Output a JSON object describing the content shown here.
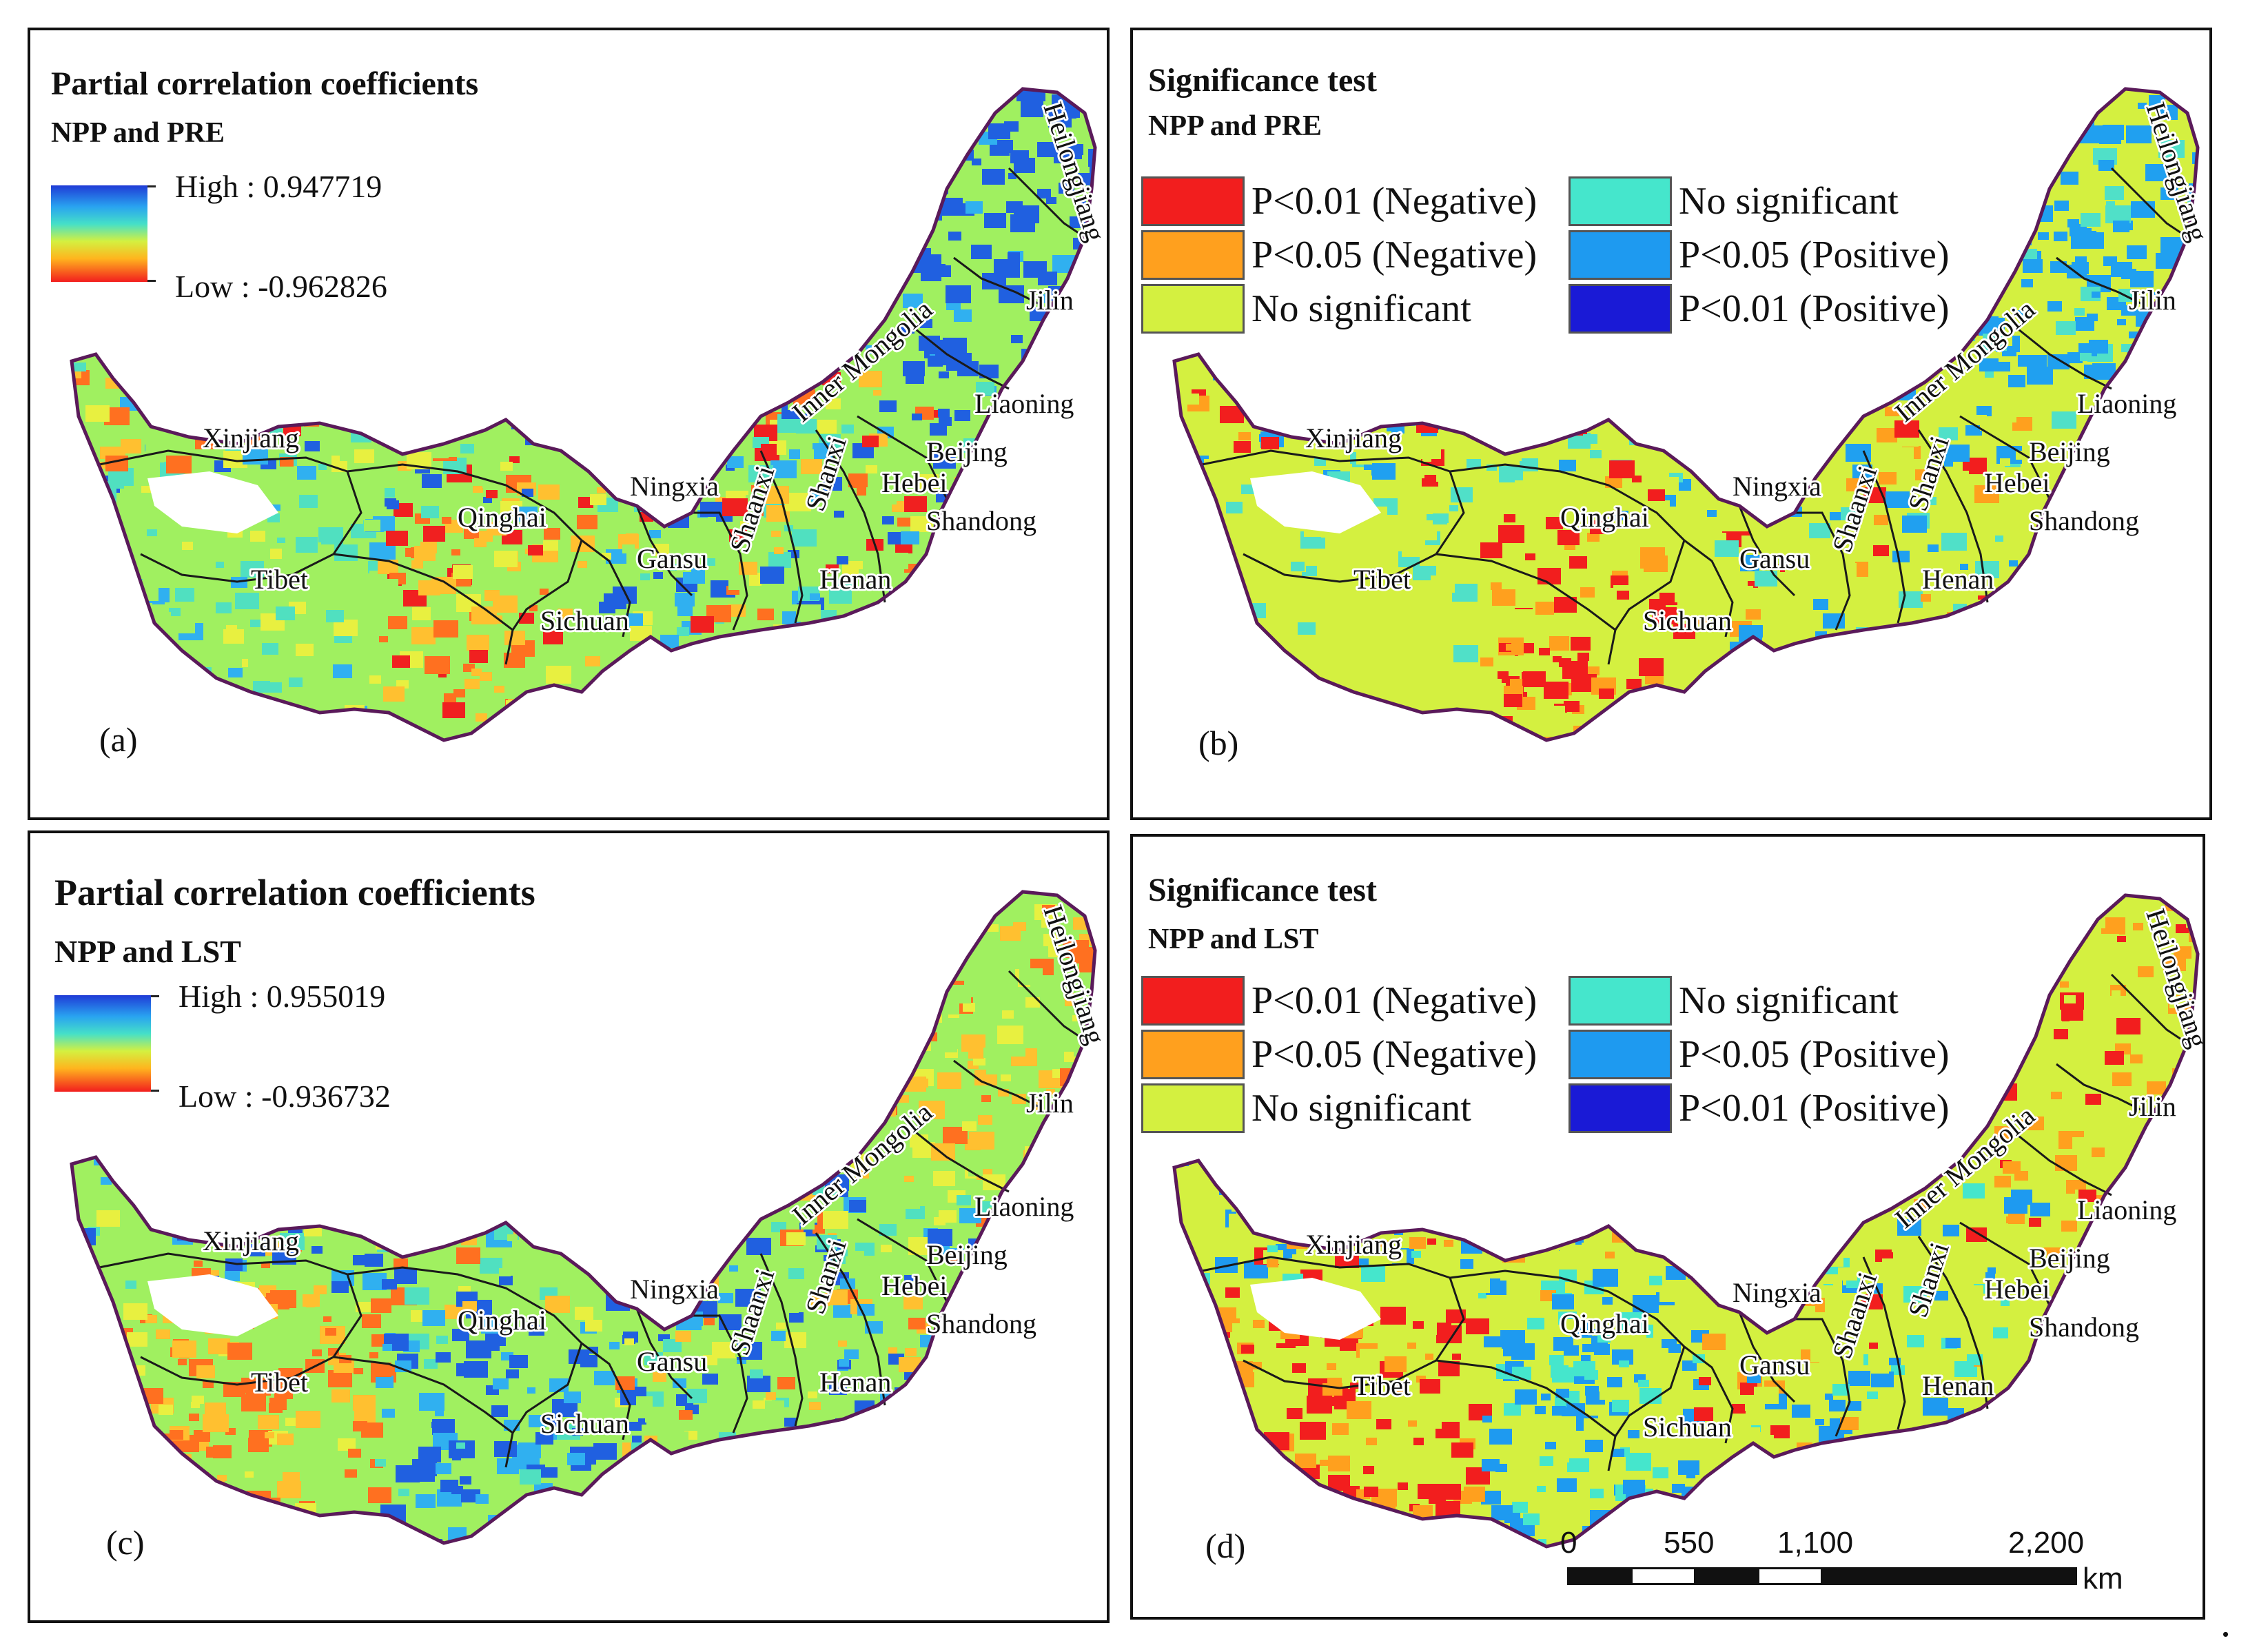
{
  "colors": {
    "ramp": [
      "#1f3bd6",
      "#29a3f0",
      "#45e0c8",
      "#d4f040",
      "#ffb41e",
      "#f21e1e"
    ],
    "boundary": "#1a1a1a",
    "outer_boundary": "#5a1a5a",
    "no_data": "#ffffff"
  },
  "provinces": [
    "Xinjiang",
    "Qinghai",
    "Tibet",
    "Sichuan",
    "Gansu",
    "Ningxia",
    "Shaanxi",
    "Shanxi",
    "Henan",
    "Hebei",
    "Beijing",
    "Shandong",
    "Liaoning",
    "Jilin",
    "Heilongjiang",
    "Inner Mongolia"
  ],
  "panels": [
    {
      "letter": "(a)",
      "title": "Partial correlation coefficients",
      "subtitle": "NPP and PRE",
      "legend": {
        "high": "High : 0.947719",
        "low": "Low : -0.962826"
      },
      "dominant_pattern": "positive correlation in northeast, negative in Qinghai-Tibet center"
    },
    {
      "letter": "(b)",
      "title": "Significance test",
      "subtitle": "NPP and PRE",
      "legend_items": [
        {
          "label": "P<0.01 (Negative)",
          "color": "#f21e1e"
        },
        {
          "label": "P<0.05 (Negative)",
          "color": "#ffa01e"
        },
        {
          "label": "No significant",
          "color": "#d4f040"
        },
        {
          "label": "No significant",
          "color": "#45e6cc"
        },
        {
          "label": "P<0.05 (Positive)",
          "color": "#1e9af0"
        },
        {
          "label": "P<0.01 (Positive)",
          "color": "#1a1ad6"
        }
      ]
    },
    {
      "letter": "(c)",
      "title": "Partial correlation coefficients",
      "subtitle": "NPP and LST",
      "legend": {
        "high": "High : 0.955019",
        "low": "Low : -0.936732"
      }
    },
    {
      "letter": "(d)",
      "title": "Significance test",
      "subtitle": "NPP and LST",
      "legend_items": [
        {
          "label": "P<0.01 (Negative)",
          "color": "#f21e1e"
        },
        {
          "label": "P<0.05 (Negative)",
          "color": "#ffa01e"
        },
        {
          "label": "No significant",
          "color": "#d4f040"
        },
        {
          "label": "No significant",
          "color": "#45e6cc"
        },
        {
          "label": "P<0.05 (Positive)",
          "color": "#1e9af0"
        },
        {
          "label": "P<0.01 (Positive)",
          "color": "#1a1ad6"
        }
      ]
    }
  ],
  "scalebar": {
    "ticks": [
      "0",
      "550",
      "1,100",
      "2,200"
    ],
    "unit": "km"
  },
  "trailing_mark": "."
}
